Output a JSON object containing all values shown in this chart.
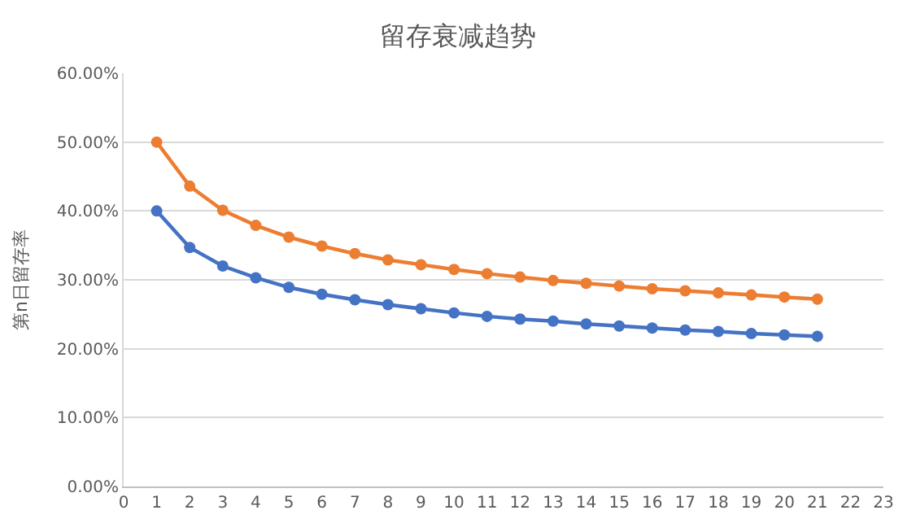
{
  "chart_data": {
    "type": "line",
    "title": "留存衰减趋势",
    "ylabel": "第n日留存率",
    "x": [
      1,
      2,
      3,
      4,
      5,
      6,
      7,
      8,
      9,
      10,
      11,
      12,
      13,
      14,
      15,
      16,
      17,
      18,
      19,
      20,
      21
    ],
    "series": [
      {
        "color": "#4472c4",
        "values": [
          40,
          34.7,
          32.0,
          30.3,
          28.9,
          27.9,
          27.1,
          26.4,
          25.8,
          25.2,
          24.7,
          24.3,
          24.0,
          23.6,
          23.3,
          23.0,
          22.7,
          22.5,
          22.2,
          22.0,
          21.8
        ]
      },
      {
        "color": "#ed7d31",
        "values": [
          50,
          43.6,
          40.1,
          37.9,
          36.2,
          34.9,
          33.8,
          32.9,
          32.2,
          31.5,
          30.9,
          30.4,
          29.9,
          29.5,
          29.1,
          28.7,
          28.4,
          28.1,
          27.8,
          27.5,
          27.2
        ]
      }
    ],
    "xlim": [
      0,
      23
    ],
    "xticks": [
      0,
      1,
      2,
      3,
      4,
      5,
      6,
      7,
      8,
      9,
      10,
      11,
      12,
      13,
      14,
      15,
      16,
      17,
      18,
      19,
      20,
      21,
      22,
      23
    ],
    "ylim": [
      0,
      60
    ],
    "yticks": [
      {
        "value": 0,
        "label": "0.00%"
      },
      {
        "value": 10,
        "label": "10.00%"
      },
      {
        "value": 20,
        "label": "20.00%"
      },
      {
        "value": 30,
        "label": "30.00%"
      },
      {
        "value": 40,
        "label": "40.00%"
      },
      {
        "value": 50,
        "label": "50.00%"
      },
      {
        "value": 60,
        "label": "60.00%"
      }
    ],
    "grid": "y",
    "marker": "circle",
    "line_style": "solid"
  }
}
